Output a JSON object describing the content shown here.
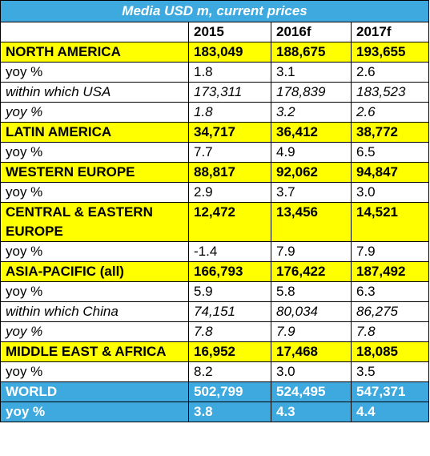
{
  "title": "Media USD m, current prices",
  "columns": [
    "",
    "2015",
    "2016f",
    "2017f"
  ],
  "rows": [
    {
      "label": "NORTH AMERICA",
      "values": [
        "183,049",
        "188,675",
        "193,655"
      ],
      "kind": "region"
    },
    {
      "label": "yoy %",
      "values": [
        "1.8",
        "3.1",
        "2.6"
      ],
      "kind": "plain"
    },
    {
      "label": "within which USA",
      "values": [
        "173,311",
        "178,839",
        "183,523"
      ],
      "kind": "sub"
    },
    {
      "label": "yoy %",
      "values": [
        "1.8",
        "3.2",
        "2.6"
      ],
      "kind": "sub"
    },
    {
      "label": "LATIN AMERICA",
      "values": [
        "34,717",
        "36,412",
        "38,772"
      ],
      "kind": "region"
    },
    {
      "label": "yoy %",
      "values": [
        "7.7",
        "4.9",
        "6.5"
      ],
      "kind": "plain"
    },
    {
      "label": "WESTERN EUROPE",
      "values": [
        "88,817",
        "92,062",
        "94,847"
      ],
      "kind": "region"
    },
    {
      "label": "yoy %",
      "values": [
        "2.9",
        "3.7",
        "3.0"
      ],
      "kind": "plain"
    },
    {
      "label": "CENTRAL & EASTERN EUROPE",
      "values": [
        "12,472",
        "13,456",
        "14,521"
      ],
      "kind": "region-wrap"
    },
    {
      "label": "yoy %",
      "values": [
        "-1.4",
        "7.9",
        "7.9"
      ],
      "kind": "plain"
    },
    {
      "label": "ASIA-PACIFIC (all)",
      "values": [
        "166,793",
        "176,422",
        "187,492"
      ],
      "kind": "region"
    },
    {
      "label": "yoy %",
      "values": [
        "5.9",
        "5.8",
        "6.3"
      ],
      "kind": "plain"
    },
    {
      "label": "within which China",
      "values": [
        "74,151",
        "80,034",
        "86,275"
      ],
      "kind": "sub"
    },
    {
      "label": "yoy %",
      "values": [
        "7.8",
        "7.9",
        "7.8"
      ],
      "kind": "sub"
    },
    {
      "label": "MIDDLE EAST & AFRICA",
      "values": [
        "16,952",
        "17,468",
        "18,085"
      ],
      "kind": "region"
    },
    {
      "label": "yoy %",
      "values": [
        "8.2",
        "3.0",
        "3.5"
      ],
      "kind": "plain"
    },
    {
      "label": "WORLD",
      "values": [
        "502,799",
        "524,495",
        "547,371"
      ],
      "kind": "world"
    },
    {
      "label": "yoy %",
      "values": [
        "3.8",
        "4.3",
        "4.4"
      ],
      "kind": "world"
    }
  ],
  "colors": {
    "title_bg": "#3da9df",
    "region_bg": "#ffff00",
    "world_bg": "#3da9df"
  }
}
